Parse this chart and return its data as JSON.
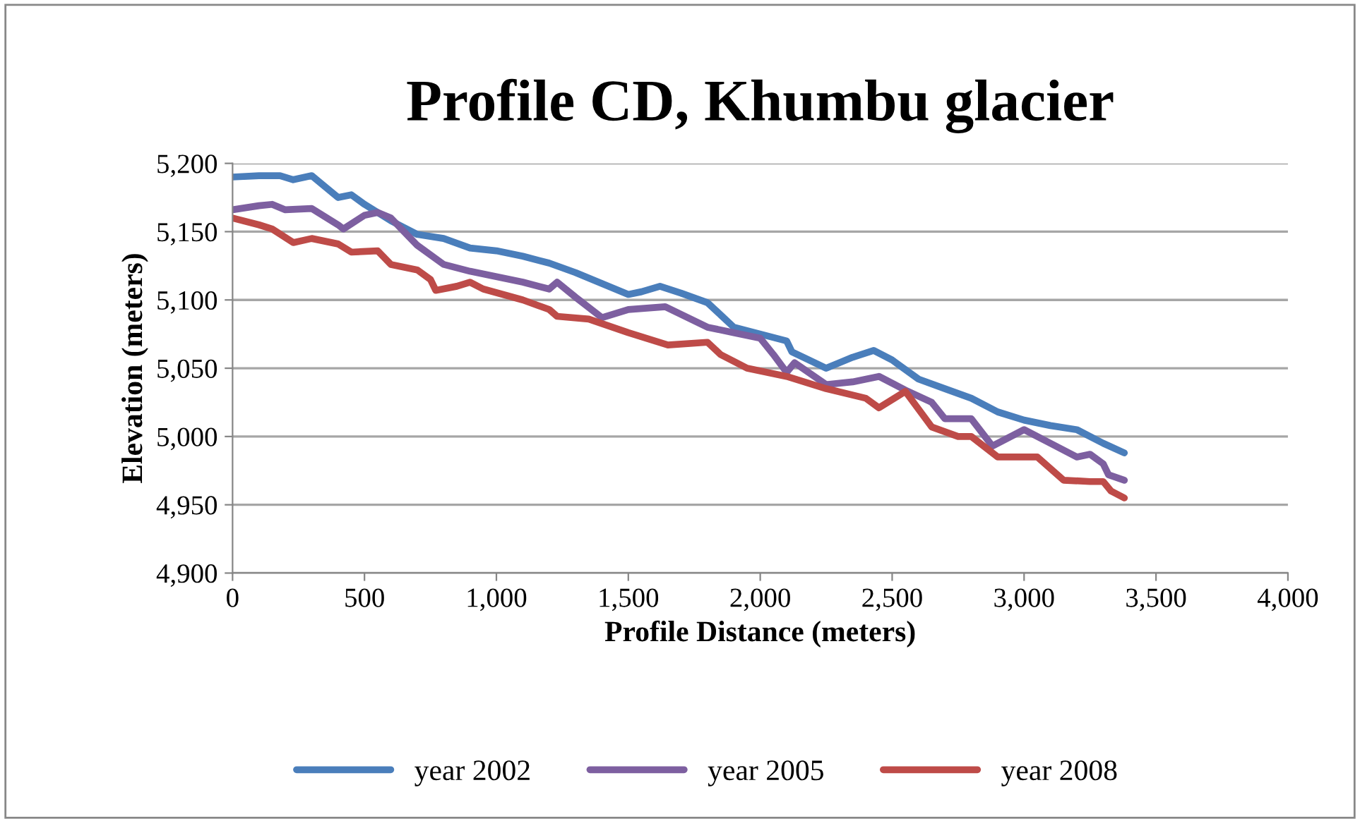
{
  "chart_data": {
    "type": "line",
    "title": "Profile CD, Khumbu glacier",
    "xlabel": "Profile Distance (meters)",
    "ylabel": "Elevation (meters)",
    "xlim": [
      0,
      4000
    ],
    "xticks": [
      {
        "value": 0,
        "label": "0"
      },
      {
        "value": 500,
        "label": "500"
      },
      {
        "value": 1000,
        "label": "1,000"
      },
      {
        "value": 1500,
        "label": "1,500"
      },
      {
        "value": 2000,
        "label": "2,000"
      },
      {
        "value": 2500,
        "label": "2,500"
      },
      {
        "value": 3000,
        "label": "3,000"
      },
      {
        "value": 3500,
        "label": "3,500"
      },
      {
        "value": 4000,
        "label": "4,000"
      }
    ],
    "ylim": [
      4900,
      5200
    ],
    "yticks": [
      {
        "value": 4900,
        "label": "4,900"
      },
      {
        "value": 4950,
        "label": "4,950"
      },
      {
        "value": 5000,
        "label": "5,000"
      },
      {
        "value": 5050,
        "label": "5,050"
      },
      {
        "value": 5100,
        "label": "5,100"
      },
      {
        "value": 5150,
        "label": "5,150"
      },
      {
        "value": 5200,
        "label": "5,200"
      }
    ],
    "grid": "y",
    "legend": "bottom",
    "marker": "none",
    "line_style": "solid",
    "series": [
      {
        "name": "year 2002",
        "color": "#4a7ebb",
        "x": [
          0,
          100,
          180,
          230,
          300,
          400,
          450,
          500,
          600,
          700,
          800,
          900,
          1000,
          1100,
          1200,
          1300,
          1400,
          1500,
          1550,
          1620,
          1700,
          1800,
          1900,
          2000,
          2100,
          2120,
          2250,
          2350,
          2430,
          2500,
          2600,
          2700,
          2800,
          2900,
          3000,
          3100,
          3200,
          3300,
          3380
        ],
        "values": [
          5190,
          5191,
          5191,
          5188,
          5191,
          5175,
          5177,
          5170,
          5158,
          5148,
          5145,
          5138,
          5136,
          5132,
          5127,
          5120,
          5112,
          5104,
          5106,
          5110,
          5105,
          5098,
          5080,
          5075,
          5070,
          5062,
          5050,
          5058,
          5063,
          5056,
          5042,
          5035,
          5028,
          5018,
          5012,
          5008,
          5005,
          4995,
          4988
        ]
      },
      {
        "name": "year 2005",
        "color": "#7d5fa0",
        "x": [
          0,
          100,
          150,
          200,
          300,
          400,
          420,
          500,
          550,
          600,
          700,
          800,
          900,
          1000,
          1100,
          1200,
          1230,
          1300,
          1400,
          1500,
          1640,
          1800,
          1900,
          2000,
          2050,
          2100,
          2130,
          2250,
          2350,
          2450,
          2550,
          2650,
          2700,
          2800,
          2880,
          3000,
          3100,
          3200,
          3250,
          3300,
          3320,
          3380
        ],
        "values": [
          5166,
          5169,
          5170,
          5166,
          5167,
          5155,
          5152,
          5162,
          5164,
          5160,
          5140,
          5126,
          5121,
          5117,
          5113,
          5108,
          5113,
          5102,
          5087,
          5093,
          5095,
          5080,
          5076,
          5072,
          5060,
          5047,
          5054,
          5038,
          5040,
          5044,
          5034,
          5025,
          5013,
          5013,
          4993,
          5005,
          4995,
          4985,
          4987,
          4980,
          4972,
          4968
        ]
      },
      {
        "name": "year 2008",
        "color": "#be4b48",
        "x": [
          0,
          100,
          150,
          230,
          300,
          400,
          450,
          550,
          600,
          700,
          750,
          770,
          850,
          900,
          950,
          1100,
          1200,
          1230,
          1350,
          1500,
          1650,
          1800,
          1850,
          1950,
          2100,
          2250,
          2400,
          2450,
          2550,
          2600,
          2650,
          2750,
          2800,
          2900,
          3000,
          3050,
          3150,
          3250,
          3300,
          3330,
          3380
        ],
        "values": [
          5160,
          5155,
          5152,
          5142,
          5145,
          5141,
          5135,
          5136,
          5126,
          5122,
          5115,
          5107,
          5110,
          5113,
          5108,
          5100,
          5093,
          5088,
          5086,
          5076,
          5067,
          5069,
          5060,
          5050,
          5044,
          5035,
          5028,
          5021,
          5033,
          5020,
          5007,
          5000,
          5000,
          4985,
          4985,
          4985,
          4968,
          4967,
          4967,
          4960,
          4955
        ]
      }
    ]
  }
}
